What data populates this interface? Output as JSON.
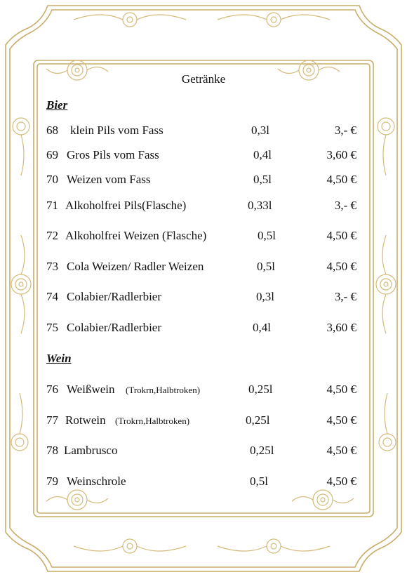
{
  "title": "Getränke",
  "sections": {
    "bier": "Bier",
    "wein": "Wein"
  },
  "items": [
    {
      "num": "68",
      "name": "klein Pils vom Fass",
      "note": "",
      "volume": "0,3l",
      "price": "3,- €"
    },
    {
      "num": "69",
      "name": "Gros Pils vom Fass",
      "note": "",
      "volume": "0,4l",
      "price": "3,60 €"
    },
    {
      "num": "70",
      "name": "Weizen vom Fass",
      "note": "",
      "volume": "0,5l",
      "price": "4,50 €"
    },
    {
      "num": "71",
      "name": "Alkoholfrei Pils(Flasche)",
      "note": "",
      "volume": "0,33l",
      "price": "3,- €"
    },
    {
      "num": "72",
      "name": "Alkoholfrei Weizen (Flasche)",
      "note": "",
      "volume": "0,5l",
      "price": "4,50 €"
    },
    {
      "num": "73",
      "name": "Cola Weizen/ Radler Weizen",
      "note": "",
      "volume": "0,5l",
      "price": "4,50 €"
    },
    {
      "num": "74",
      "name": "Colabier/Radlerbier",
      "note": "",
      "volume": "0,3l",
      "price": "3,- €"
    },
    {
      "num": "75",
      "name": "Colabier/Radlerbier",
      "note": "",
      "volume": "0,4l",
      "price": "3,60 €"
    },
    {
      "num": "76",
      "name": "Weißwein",
      "note": "(Trokrn,Halbtroken)",
      "volume": "0,25l",
      "price": "4,50 €"
    },
    {
      "num": "77",
      "name": "Rotwein",
      "note": "(Trokrn,Halbtroken)",
      "volume": "0,25l",
      "price": "4,50 €"
    },
    {
      "num": "78",
      "name": "Lambrusco",
      "note": "",
      "volume": "0,25l",
      "price": "4,50 €"
    },
    {
      "num": "79",
      "name": "Weinschrole",
      "note": "",
      "volume": "0,5l",
      "price": "4,50 €"
    }
  ],
  "colors": {
    "frame_gold": "#c9ad6a",
    "frame_light": "#e8d9a8"
  }
}
